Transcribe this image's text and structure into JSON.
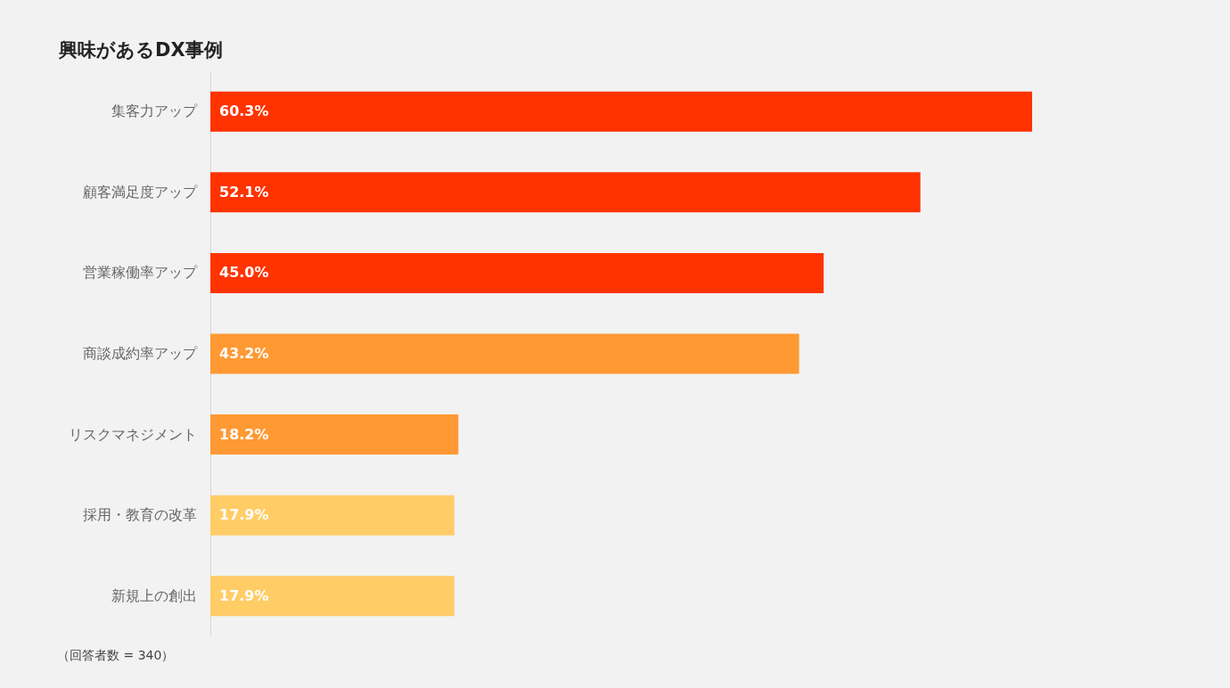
{
  "chart_data": {
    "type": "bar",
    "orientation": "horizontal",
    "title": "興味があるDX事例",
    "categories": [
      "集客力アップ",
      "顧客満足度アップ",
      "営業稼働率アップ",
      "商談成約率アップ",
      "リスクマネジメント",
      "採用・教育の改革",
      "新規上の創出"
    ],
    "values": [
      60.3,
      52.1,
      45.0,
      43.2,
      18.2,
      17.9,
      17.9
    ],
    "value_labels": [
      "60.3%",
      "52.1%",
      "45.0%",
      "43.2%",
      "18.2%",
      "17.9%",
      "17.9%"
    ],
    "colors": [
      "#ff3300",
      "#ff3300",
      "#ff3300",
      "#ff9933",
      "#ff9933",
      "#ffcc66",
      "#ffcc66"
    ],
    "tick_labels": "y",
    "grid": false,
    "annotations": [
      "（回答者数 = 340）"
    ]
  }
}
